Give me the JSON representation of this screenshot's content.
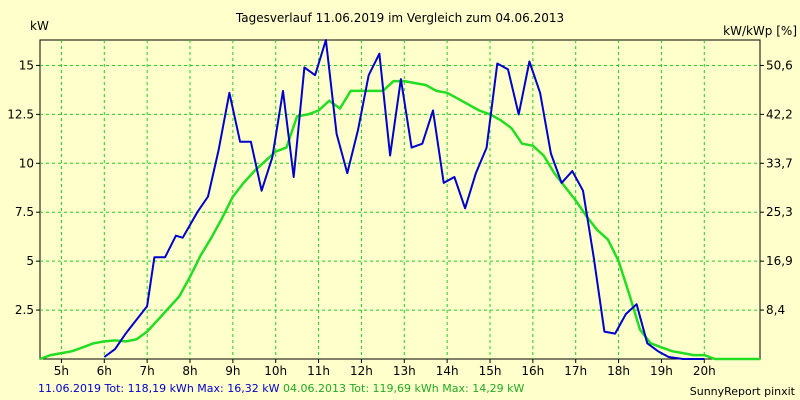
{
  "chart_data": {
    "type": "line",
    "title": "Tagesverlauf 11.06.2019 im Vergleich zum 04.06.2013",
    "ylabel_left": "kW",
    "ylabel_right": "kW/kWp [%]",
    "xlim": [
      4.5,
      21.3
    ],
    "ylim": [
      0,
      16.3
    ],
    "x_ticks": [
      {
        "value": 5,
        "label": "5h"
      },
      {
        "value": 6,
        "label": "6h"
      },
      {
        "value": 7,
        "label": "7h"
      },
      {
        "value": 8,
        "label": "8h"
      },
      {
        "value": 9,
        "label": "9h"
      },
      {
        "value": 10,
        "label": "10h"
      },
      {
        "value": 11,
        "label": "11h"
      },
      {
        "value": 12,
        "label": "12h"
      },
      {
        "value": 13,
        "label": "13h"
      },
      {
        "value": 14,
        "label": "14h"
      },
      {
        "value": 15,
        "label": "15h"
      },
      {
        "value": 16,
        "label": "16h"
      },
      {
        "value": 17,
        "label": "17h"
      },
      {
        "value": 18,
        "label": "18h"
      },
      {
        "value": 19,
        "label": "19h"
      },
      {
        "value": 20,
        "label": "20h"
      }
    ],
    "y_ticks_left": [
      {
        "value": 2.5,
        "label": "2.5"
      },
      {
        "value": 5,
        "label": "5"
      },
      {
        "value": 7.5,
        "label": "7.5"
      },
      {
        "value": 10,
        "label": "10"
      },
      {
        "value": 12.5,
        "label": "12.5"
      },
      {
        "value": 15,
        "label": "15"
      }
    ],
    "y_ticks_right": [
      {
        "value": 2.5,
        "label": "8,4"
      },
      {
        "value": 5,
        "label": "16,9"
      },
      {
        "value": 7.5,
        "label": "25,3"
      },
      {
        "value": 10,
        "label": "33,7"
      },
      {
        "value": 12.5,
        "label": "42,2"
      },
      {
        "value": 15,
        "label": "50,6"
      }
    ],
    "grid": true,
    "series": [
      {
        "name": "11.06.2019",
        "color": "#0000cc",
        "points": [
          [
            6.0,
            0.1
          ],
          [
            6.25,
            0.5
          ],
          [
            6.5,
            1.3
          ],
          [
            6.75,
            2.0
          ],
          [
            7.0,
            2.7
          ],
          [
            7.17,
            5.2
          ],
          [
            7.42,
            5.2
          ],
          [
            7.67,
            6.3
          ],
          [
            7.83,
            6.2
          ],
          [
            8.17,
            7.5
          ],
          [
            8.42,
            8.3
          ],
          [
            8.67,
            10.7
          ],
          [
            8.92,
            13.6
          ],
          [
            9.17,
            11.1
          ],
          [
            9.42,
            11.1
          ],
          [
            9.67,
            8.6
          ],
          [
            9.92,
            10.3
          ],
          [
            10.17,
            13.7
          ],
          [
            10.42,
            9.3
          ],
          [
            10.67,
            14.9
          ],
          [
            10.92,
            14.5
          ],
          [
            11.17,
            16.3
          ],
          [
            11.42,
            11.5
          ],
          [
            11.67,
            9.5
          ],
          [
            11.92,
            11.7
          ],
          [
            12.17,
            14.5
          ],
          [
            12.42,
            15.6
          ],
          [
            12.67,
            10.4
          ],
          [
            12.92,
            14.3
          ],
          [
            13.17,
            10.8
          ],
          [
            13.42,
            11.0
          ],
          [
            13.67,
            12.7
          ],
          [
            13.92,
            9.0
          ],
          [
            14.17,
            9.3
          ],
          [
            14.42,
            7.7
          ],
          [
            14.67,
            9.5
          ],
          [
            14.92,
            10.8
          ],
          [
            15.17,
            15.1
          ],
          [
            15.42,
            14.8
          ],
          [
            15.67,
            12.5
          ],
          [
            15.92,
            15.2
          ],
          [
            16.17,
            13.6
          ],
          [
            16.42,
            10.5
          ],
          [
            16.67,
            9.0
          ],
          [
            16.92,
            9.6
          ],
          [
            17.17,
            8.6
          ],
          [
            17.42,
            5.2
          ],
          [
            17.67,
            1.4
          ],
          [
            17.92,
            1.3
          ],
          [
            18.17,
            2.3
          ],
          [
            18.42,
            2.8
          ],
          [
            18.67,
            0.8
          ],
          [
            18.92,
            0.4
          ],
          [
            19.17,
            0.1
          ],
          [
            19.5,
            0.0
          ],
          [
            20.0,
            0.0
          ]
        ]
      },
      {
        "name": "04.06.2013",
        "color": "#22dd22",
        "points": [
          [
            4.5,
            0.0
          ],
          [
            4.75,
            0.2
          ],
          [
            5.0,
            0.3
          ],
          [
            5.25,
            0.4
          ],
          [
            5.5,
            0.6
          ],
          [
            5.75,
            0.8
          ],
          [
            6.0,
            0.9
          ],
          [
            6.25,
            0.95
          ],
          [
            6.5,
            0.9
          ],
          [
            6.75,
            1.0
          ],
          [
            7.0,
            1.4
          ],
          [
            7.25,
            2.0
          ],
          [
            7.5,
            2.6
          ],
          [
            7.75,
            3.2
          ],
          [
            8.0,
            4.2
          ],
          [
            8.25,
            5.3
          ],
          [
            8.5,
            6.2
          ],
          [
            8.75,
            7.2
          ],
          [
            9.0,
            8.3
          ],
          [
            9.25,
            9.0
          ],
          [
            9.5,
            9.6
          ],
          [
            9.75,
            10.1
          ],
          [
            10.0,
            10.6
          ],
          [
            10.25,
            10.8
          ],
          [
            10.5,
            12.4
          ],
          [
            10.75,
            12.5
          ],
          [
            11.0,
            12.7
          ],
          [
            11.25,
            13.2
          ],
          [
            11.5,
            12.8
          ],
          [
            11.75,
            13.7
          ],
          [
            12.0,
            13.7
          ],
          [
            12.25,
            13.7
          ],
          [
            12.5,
            13.7
          ],
          [
            12.75,
            14.2
          ],
          [
            13.0,
            14.2
          ],
          [
            13.25,
            14.1
          ],
          [
            13.5,
            14.0
          ],
          [
            13.75,
            13.7
          ],
          [
            14.0,
            13.6
          ],
          [
            14.25,
            13.3
          ],
          [
            14.5,
            13.0
          ],
          [
            14.75,
            12.7
          ],
          [
            15.0,
            12.5
          ],
          [
            15.25,
            12.2
          ],
          [
            15.5,
            11.8
          ],
          [
            15.75,
            11.0
          ],
          [
            16.0,
            10.9
          ],
          [
            16.25,
            10.4
          ],
          [
            16.5,
            9.5
          ],
          [
            16.75,
            8.8
          ],
          [
            17.0,
            8.1
          ],
          [
            17.25,
            7.3
          ],
          [
            17.5,
            6.6
          ],
          [
            17.75,
            6.1
          ],
          [
            18.0,
            5.0
          ],
          [
            18.25,
            3.3
          ],
          [
            18.5,
            1.5
          ],
          [
            18.75,
            0.8
          ],
          [
            19.0,
            0.6
          ],
          [
            19.25,
            0.4
          ],
          [
            19.5,
            0.3
          ],
          [
            19.75,
            0.2
          ],
          [
            20.0,
            0.2
          ],
          [
            20.25,
            0.0
          ],
          [
            20.5,
            0.0
          ],
          [
            21.3,
            0.0
          ]
        ]
      }
    ]
  },
  "footer": {
    "series1_date": "11.06.2019",
    "series1_stats": " Tot: 118,19 kWh Max: 16,32 kW",
    "series2_date": " 04.06.2013",
    "series2_stats": " Tot: 119,69 kWh Max: 14,29 kW",
    "credit": "SunnyReport pinxit"
  }
}
